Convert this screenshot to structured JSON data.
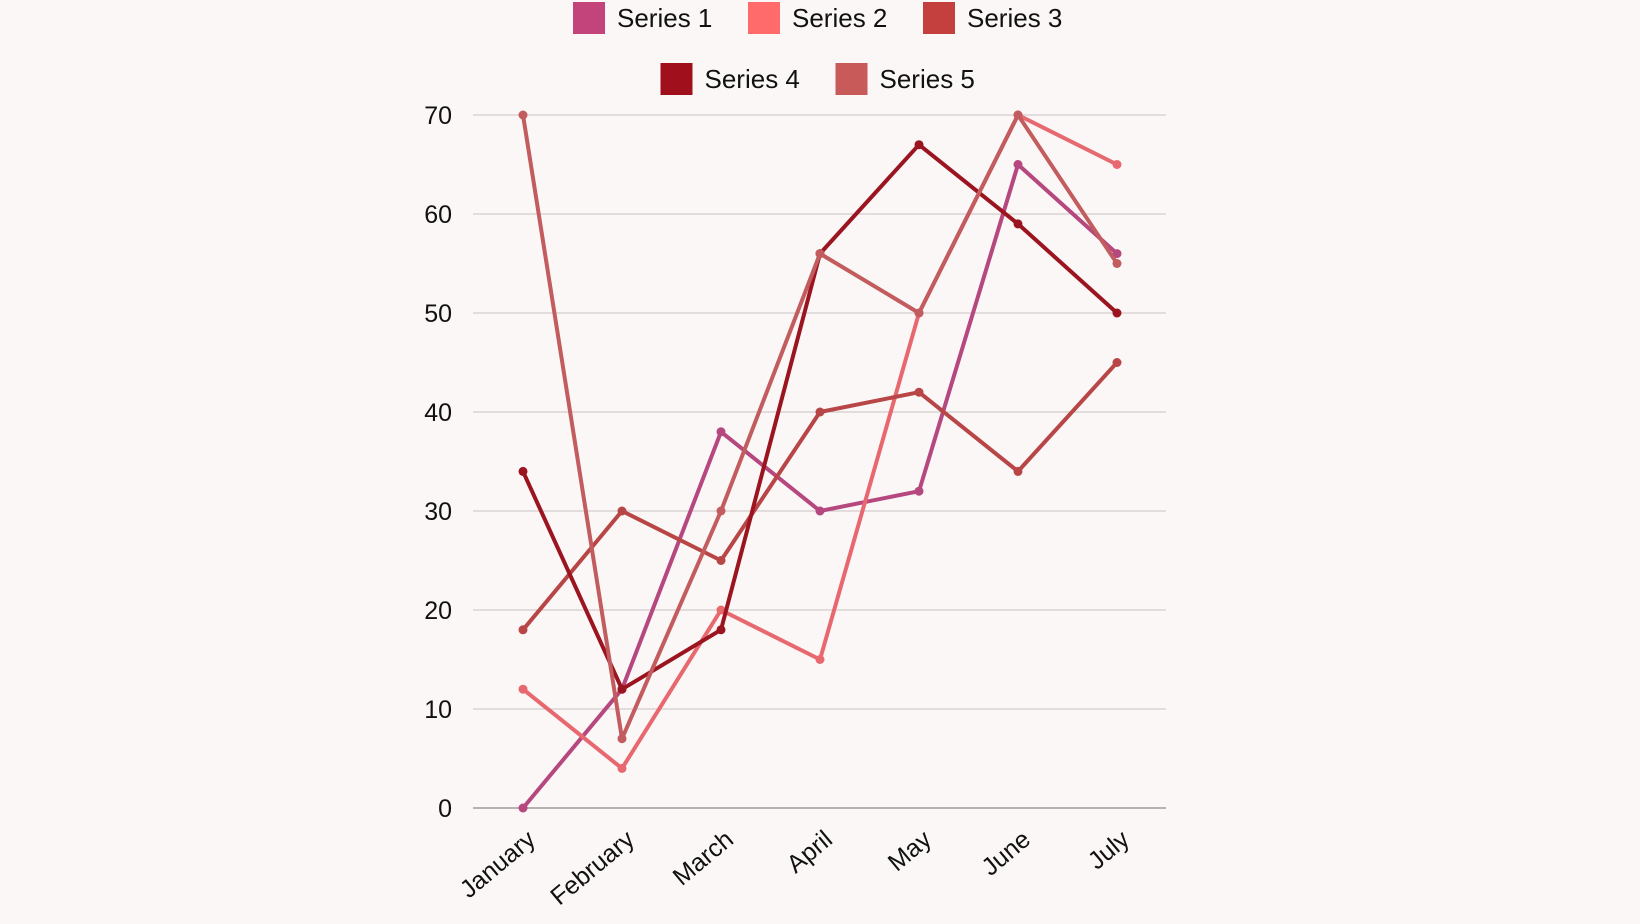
{
  "chart_data": {
    "type": "line",
    "categories": [
      "January",
      "February",
      "March",
      "April",
      "May",
      "June",
      "July"
    ],
    "ylim": [
      0,
      70
    ],
    "yticks": [
      0,
      10,
      20,
      30,
      40,
      50,
      60,
      70
    ],
    "grid": true,
    "legend_position": "top",
    "series": [
      {
        "name": "Series 1",
        "color": "#c2447a",
        "line_color": "#b5487e",
        "values": [
          0,
          12,
          38,
          30,
          32,
          65,
          56
        ]
      },
      {
        "name": "Series 2",
        "color": "#ff6b6b",
        "line_color": "#e8686f",
        "values": [
          12,
          4,
          20,
          15,
          50,
          70,
          65
        ]
      },
      {
        "name": "Series 3",
        "color": "#c4403f",
        "line_color": "#b84646",
        "values": [
          18,
          30,
          25,
          40,
          42,
          34,
          45
        ]
      },
      {
        "name": "Series 4",
        "color": "#a0101c",
        "line_color": "#9b1520",
        "values": [
          34,
          12,
          18,
          56,
          67,
          59,
          50
        ]
      },
      {
        "name": "Series 5",
        "color": "#c85a5a",
        "line_color": "#c25c5e",
        "values": [
          70,
          7,
          30,
          56,
          50,
          70,
          55
        ]
      }
    ]
  }
}
